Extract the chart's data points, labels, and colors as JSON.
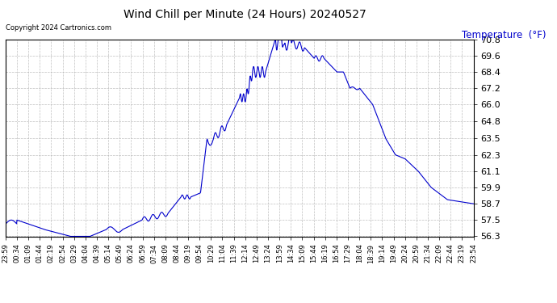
{
  "title": "Wind Chill per Minute (24 Hours) 20240527",
  "copyright": "Copyright 2024 Cartronics.com",
  "ylabel": "Temperature  (°F)",
  "ylabel_color": "#0000cc",
  "line_color": "#0000cc",
  "background_color": "#ffffff",
  "grid_color": "#b0b0b0",
  "ylim": [
    56.3,
    70.8
  ],
  "yticks": [
    56.3,
    57.5,
    58.7,
    59.9,
    61.1,
    62.3,
    63.5,
    64.8,
    66.0,
    67.2,
    68.4,
    69.6,
    70.8
  ],
  "x_labels": [
    "23:59",
    "00:34",
    "01:09",
    "01:44",
    "02:19",
    "02:54",
    "03:29",
    "04:04",
    "04:39",
    "05:14",
    "05:49",
    "06:24",
    "06:59",
    "07:34",
    "08:09",
    "08:44",
    "09:19",
    "09:54",
    "10:29",
    "11:04",
    "11:39",
    "12:14",
    "12:49",
    "13:24",
    "13:59",
    "14:34",
    "15:09",
    "15:44",
    "16:19",
    "16:54",
    "17:29",
    "18:04",
    "18:39",
    "19:14",
    "19:49",
    "20:24",
    "20:59",
    "21:34",
    "22:09",
    "22:44",
    "23:19",
    "23:54"
  ]
}
